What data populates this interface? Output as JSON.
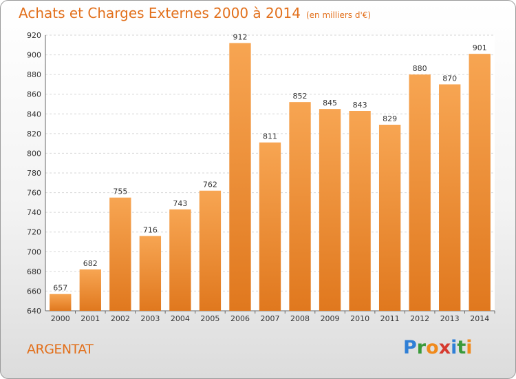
{
  "header": {
    "title": "Achats et Charges Externes 2000 à 2014",
    "unit": "(en milliers d'€)"
  },
  "commune": "ARGENTAT",
  "logo": {
    "letters": [
      "P",
      "r",
      "o",
      "x",
      "i",
      "t",
      "i"
    ],
    "colors": [
      "#2f7fd6",
      "#3a9a3a",
      "#f08a1c",
      "#d63a2f",
      "#2f7fd6",
      "#3a9a3a",
      "#f08a1c"
    ]
  },
  "colors": {
    "bar_top": "#f7a552",
    "bar_bottom": "#e0781e",
    "accent": "#e2701c"
  },
  "chart_data": {
    "type": "bar",
    "title": "Achats et Charges Externes 2000 à 2014",
    "categories": [
      "2000",
      "2001",
      "2002",
      "2003",
      "2004",
      "2005",
      "2006",
      "2007",
      "2008",
      "2009",
      "2010",
      "2011",
      "2012",
      "2013",
      "2014"
    ],
    "values": [
      657,
      682,
      755,
      716,
      743,
      762,
      912,
      811,
      852,
      845,
      843,
      829,
      880,
      870,
      901
    ],
    "ylim": [
      640,
      920
    ],
    "yticks": [
      640,
      660,
      680,
      700,
      720,
      740,
      760,
      780,
      800,
      820,
      840,
      860,
      880,
      900,
      920
    ],
    "grid": true,
    "xlabel": "",
    "ylabel": ""
  }
}
